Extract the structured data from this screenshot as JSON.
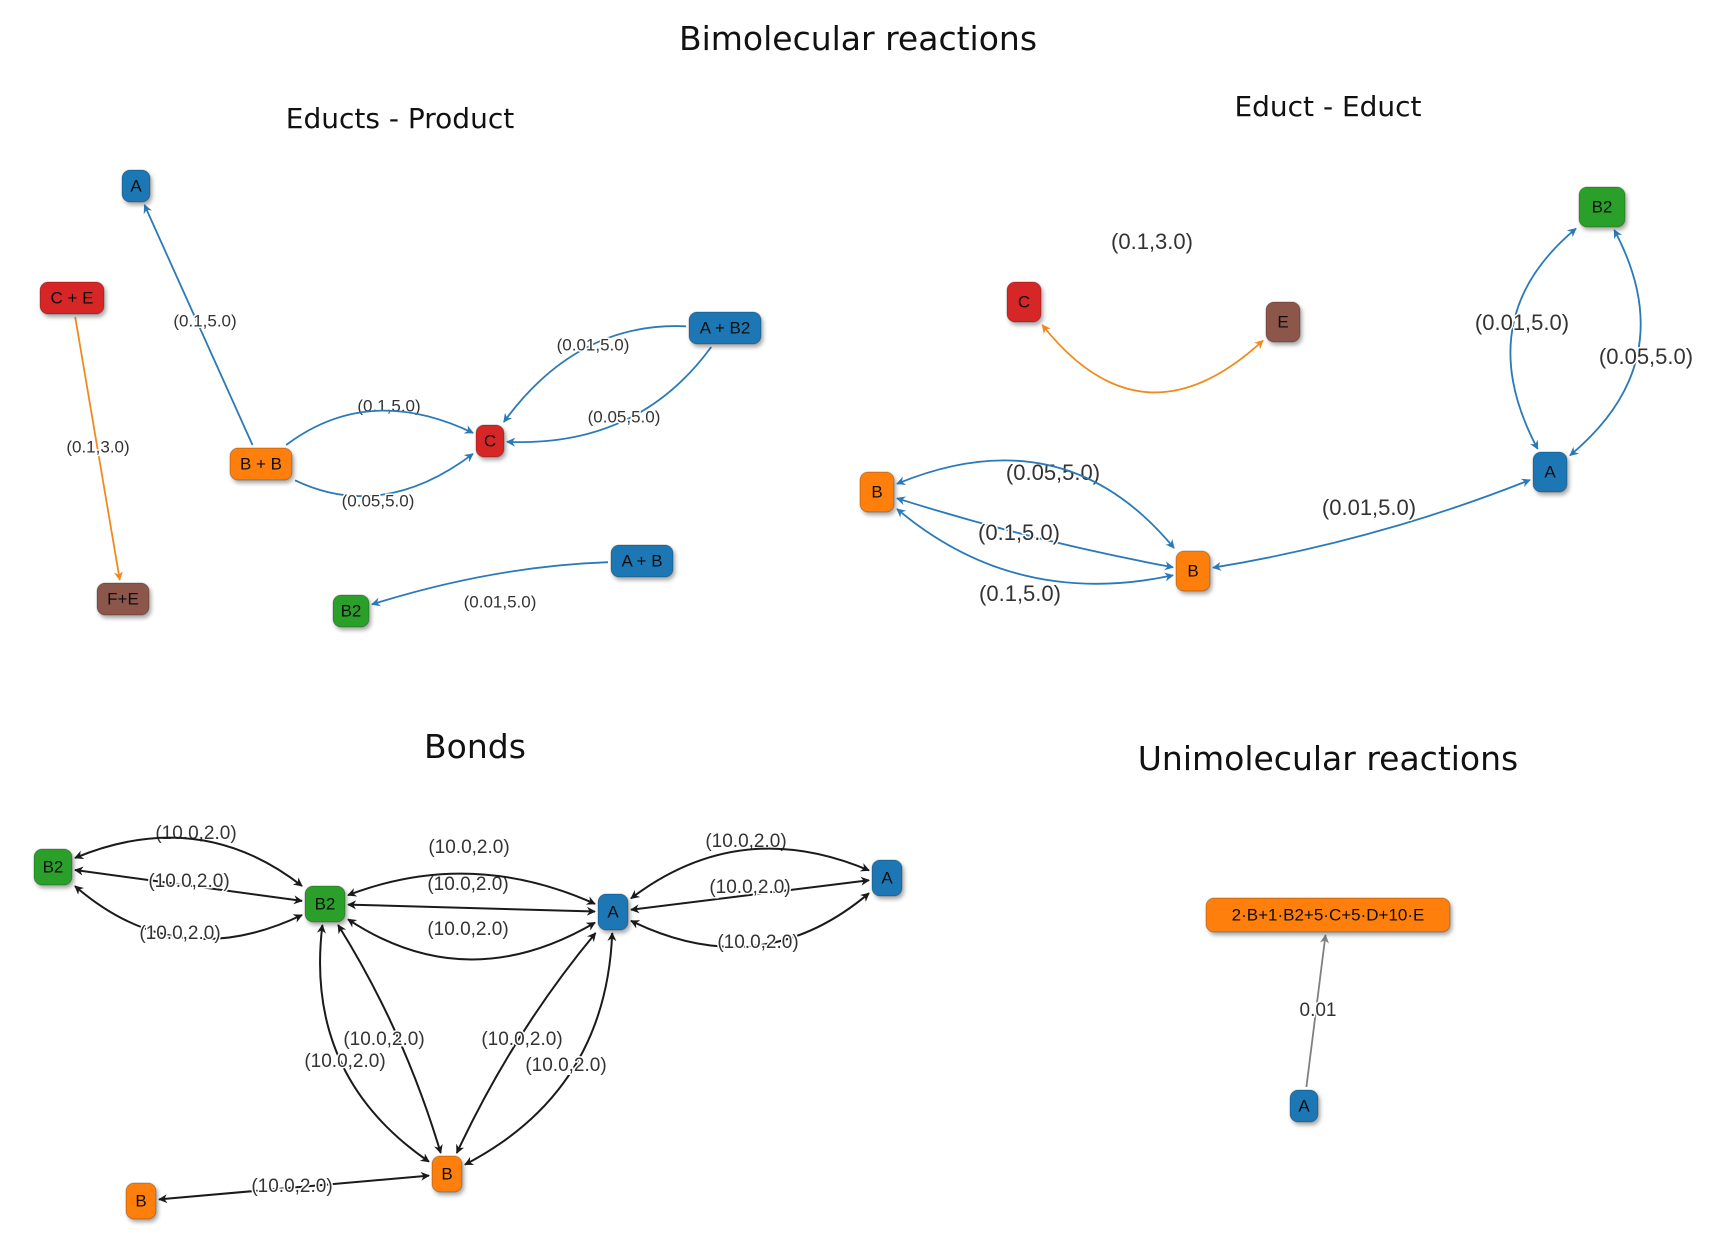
{
  "page_title": "Bimolecular reactions",
  "colors": {
    "blue": "#1f77b4",
    "orange": "#ff7f0e",
    "green": "#2ca02c",
    "red": "#d62728",
    "brown": "#8c564b",
    "edge_blue": "#2a7ab9",
    "edge_orange": "#f08a1e",
    "edge_black": "#1a1a1a",
    "edge_gray": "#808080"
  },
  "panels": [
    {
      "id": "educts-product",
      "title": "Educts - Product",
      "nodes": [
        {
          "id": "A",
          "label": "A",
          "color": "blue"
        },
        {
          "id": "CE",
          "label": "C + E",
          "color": "red"
        },
        {
          "id": "AB2",
          "label": "A + B2",
          "color": "blue"
        },
        {
          "id": "BB",
          "label": "B + B",
          "color": "orange"
        },
        {
          "id": "C",
          "label": "C",
          "color": "red"
        },
        {
          "id": "FE",
          "label": "F+E",
          "color": "brown"
        },
        {
          "id": "B2",
          "label": "B2",
          "color": "green"
        },
        {
          "id": "AB",
          "label": "A + B",
          "color": "blue"
        }
      ],
      "edges": [
        {
          "from": "BB",
          "to": "A",
          "label": "(0.1,5.0)",
          "color": "edge_blue"
        },
        {
          "from": "CE",
          "to": "FE",
          "label": "(0.1,3.0)",
          "color": "edge_orange"
        },
        {
          "from": "BB",
          "to": "C",
          "label": "(0.1,5.0)",
          "color": "edge_blue"
        },
        {
          "from": "BB",
          "to": "C",
          "label": "(0.05,5.0)",
          "color": "edge_blue"
        },
        {
          "from": "AB2",
          "to": "C",
          "label": "(0.01,5.0)",
          "color": "edge_blue"
        },
        {
          "from": "AB2",
          "to": "C",
          "label": "(0.05,5.0)",
          "color": "edge_blue"
        },
        {
          "from": "AB",
          "to": "B2",
          "label": "(0.01,5.0)",
          "color": "edge_blue"
        }
      ]
    },
    {
      "id": "educt-educt",
      "title": "Educt - Educt",
      "nodes": [
        {
          "id": "C",
          "label": "C",
          "color": "red"
        },
        {
          "id": "E",
          "label": "E",
          "color": "brown"
        },
        {
          "id": "B2",
          "label": "B2",
          "color": "green"
        },
        {
          "id": "A",
          "label": "A",
          "color": "blue"
        },
        {
          "id": "Bl",
          "label": "B",
          "color": "orange"
        },
        {
          "id": "Bc",
          "label": "B",
          "color": "orange"
        }
      ],
      "edges": [
        {
          "from": "C",
          "to": "E",
          "label": "(0.1,3.0)",
          "color": "edge_orange"
        },
        {
          "from": "B2",
          "to": "A",
          "label": "(0.01,5.0)",
          "color": "edge_blue"
        },
        {
          "from": "B2",
          "to": "A",
          "label": "(0.05,5.0)",
          "color": "edge_blue"
        },
        {
          "from": "Bl",
          "to": "Bc",
          "label": "(0.05,5.0)",
          "color": "edge_blue"
        },
        {
          "from": "Bl",
          "to": "Bc",
          "label": "(0.1,5.0)",
          "color": "edge_blue"
        },
        {
          "from": "Bl",
          "to": "Bc",
          "label": "(0.1,5.0)",
          "color": "edge_blue"
        },
        {
          "from": "Bc",
          "to": "A",
          "label": "(0.01,5.0)",
          "color": "edge_blue"
        }
      ]
    },
    {
      "id": "bonds",
      "title": "Bonds",
      "nodes": [
        {
          "id": "B2l",
          "label": "B2",
          "color": "green"
        },
        {
          "id": "B2c",
          "label": "B2",
          "color": "green"
        },
        {
          "id": "Ac",
          "label": "A",
          "color": "blue"
        },
        {
          "id": "Ar",
          "label": "A",
          "color": "blue"
        },
        {
          "id": "Bb",
          "label": "B",
          "color": "orange"
        },
        {
          "id": "Bl",
          "label": "B",
          "color": "orange"
        }
      ],
      "edges": [
        {
          "from": "B2l",
          "to": "B2c",
          "label": "(10.0,2.0)",
          "color": "edge_black"
        },
        {
          "from": "B2l",
          "to": "B2c",
          "label": "(10.0,2.0)",
          "color": "edge_black"
        },
        {
          "from": "B2l",
          "to": "B2c",
          "label": "(10.0,2.0)",
          "color": "edge_black"
        },
        {
          "from": "B2c",
          "to": "Ac",
          "label": "(10.0,2.0)",
          "color": "edge_black"
        },
        {
          "from": "B2c",
          "to": "Ac",
          "label": "(10.0,2.0)",
          "color": "edge_black"
        },
        {
          "from": "B2c",
          "to": "Ac",
          "label": "(10.0,2.0)",
          "color": "edge_black"
        },
        {
          "from": "Ac",
          "to": "Ar",
          "label": "(10.0,2.0)",
          "color": "edge_black"
        },
        {
          "from": "Ac",
          "to": "Ar",
          "label": "(10.0,2.0)",
          "color": "edge_black"
        },
        {
          "from": "Ac",
          "to": "Ar",
          "label": "(10.0,2.0)",
          "color": "edge_black"
        },
        {
          "from": "B2c",
          "to": "Bb",
          "label": "(10.0,2.0)",
          "color": "edge_black"
        },
        {
          "from": "B2c",
          "to": "Bb",
          "label": "(10.0,2.0)",
          "color": "edge_black"
        },
        {
          "from": "Ac",
          "to": "Bb",
          "label": "(10.0,2.0)",
          "color": "edge_black"
        },
        {
          "from": "Ac",
          "to": "Bb",
          "label": "(10.0,2.0)",
          "color": "edge_black"
        },
        {
          "from": "Bb",
          "to": "Bl",
          "label": "(10.0,2.0)",
          "color": "edge_black"
        }
      ]
    },
    {
      "id": "unimolecular",
      "title": "Unimolecular reactions",
      "nodes": [
        {
          "id": "P",
          "label": "2·B+1·B2+5·C+5·D+10·E",
          "color": "orange"
        },
        {
          "id": "A",
          "label": "A",
          "color": "blue"
        }
      ],
      "edges": [
        {
          "from": "A",
          "to": "P",
          "label": "0.01",
          "color": "edge_gray"
        }
      ]
    }
  ]
}
